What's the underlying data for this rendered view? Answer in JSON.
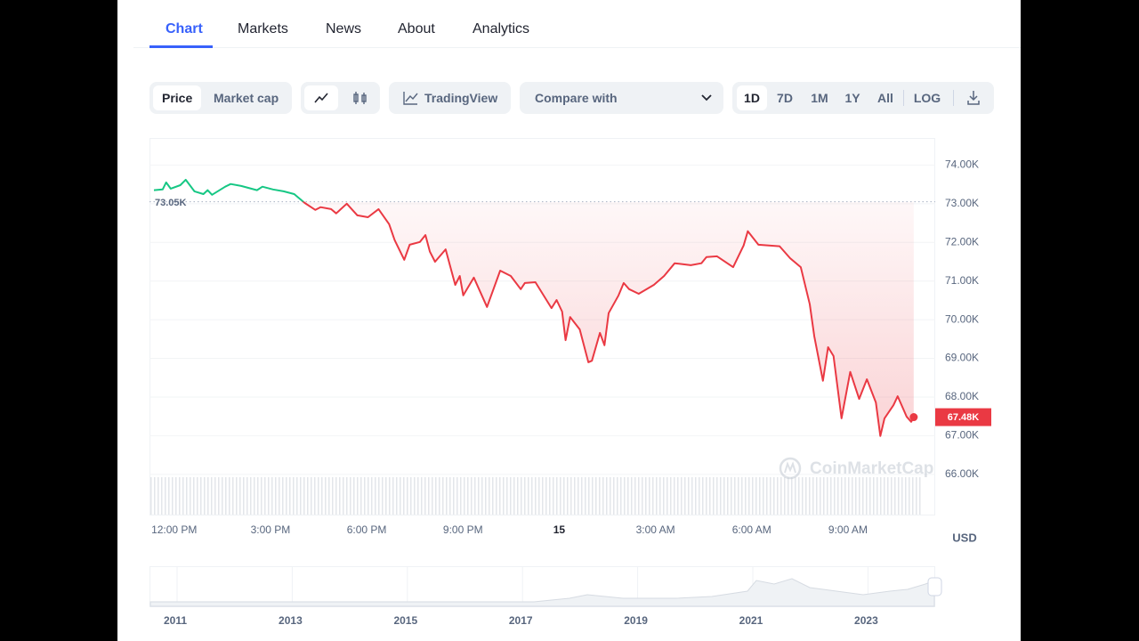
{
  "tabs": [
    "Chart",
    "Markets",
    "News",
    "About",
    "Analytics"
  ],
  "toolbar": {
    "data_type": [
      "Price",
      "Market cap"
    ],
    "tradingview": "TradingView",
    "compare": "Compare with",
    "ranges": [
      "1D",
      "7D",
      "1M",
      "1Y",
      "All"
    ],
    "log": "LOG"
  },
  "chart_data": {
    "type": "line",
    "x": [
      11.37,
      11.64,
      11.75,
      11.89,
      12.19,
      12.36,
      12.63,
      12.91,
      13.04,
      13.18,
      13.59,
      13.76,
      14.09,
      14.58,
      14.75,
      15.08,
      15.41,
      15.74,
      16.07,
      16.4,
      16.56,
      16.89,
      17.05,
      17.38,
      17.71,
      18.04,
      18.37,
      18.7,
      18.87,
      19.17,
      19.34,
      19.66,
      19.83,
      19.97,
      20.13,
      20.46,
      20.76,
      20.9,
      21.01,
      21.34,
      21.75,
      22.16,
      22.49,
      22.8,
      22.93,
      23.26,
      23.76,
      23.92,
      24.09,
      24.2,
      24.34,
      24.64,
      24.91,
      25.02,
      25.27,
      25.41,
      25.54,
      25.85,
      26.01,
      26.18,
      26.48,
      26.95,
      27.27,
      27.6,
      28.1,
      28.43,
      28.59,
      28.92,
      29.42,
      29.75,
      29.88,
      30.21,
      30.54,
      30.87,
      31.2,
      31.53,
      31.81,
      31.95,
      32.22,
      32.38,
      32.55,
      32.8,
      33.07,
      33.35,
      33.59,
      33.87,
      34.01,
      34.14,
      34.42,
      34.55,
      34.83,
      34.97,
      35.05
    ],
    "values": [
      73350,
      73370,
      73550,
      73390,
      73480,
      73620,
      73320,
      73250,
      73350,
      73230,
      73440,
      73510,
      73460,
      73350,
      73440,
      73370,
      73320,
      73250,
      73020,
      72840,
      72910,
      72860,
      72750,
      73000,
      72700,
      72650,
      72860,
      72470,
      72060,
      71550,
      71940,
      72010,
      72190,
      71760,
      71500,
      71820,
      70900,
      71130,
      70630,
      71090,
      70330,
      71270,
      71130,
      70790,
      70950,
      70970,
      70300,
      70510,
      70210,
      69470,
      70070,
      69750,
      68900,
      68940,
      69660,
      69340,
      70170,
      70630,
      70950,
      70790,
      70670,
      70900,
      71130,
      71460,
      71410,
      71460,
      71620,
      71640,
      71360,
      71920,
      72290,
      71940,
      71920,
      71900,
      71590,
      71360,
      70400,
      69570,
      68420,
      69290,
      69060,
      67450,
      68650,
      67950,
      68460,
      67860,
      66990,
      67450,
      67790,
      68020,
      67490,
      67360,
      67480
    ],
    "color_up": "#16c784",
    "color_down": "#ea3943",
    "baseline": {
      "value": 73050,
      "label": "73.05K"
    },
    "last_price": {
      "value": 67480,
      "label": "67.48K"
    },
    "xlim": [
      11.23,
      35.72
    ],
    "ylim": [
      64960,
      74700
    ],
    "xticks": [
      {
        "value": 12,
        "label": "12:00 PM"
      },
      {
        "value": 15,
        "label": "3:00 PM"
      },
      {
        "value": 18,
        "label": "6:00 PM"
      },
      {
        "value": 21,
        "label": "9:00 PM"
      },
      {
        "value": 24,
        "label": "15"
      },
      {
        "value": 27,
        "label": "3:00 AM"
      },
      {
        "value": 30,
        "label": "6:00 AM"
      },
      {
        "value": 33,
        "label": "9:00 AM"
      }
    ],
    "yticks": [
      {
        "value": 74000,
        "label": "74.00K"
      },
      {
        "value": 73000,
        "label": "73.00K"
      },
      {
        "value": 72000,
        "label": "72.00K"
      },
      {
        "value": 71000,
        "label": "71.00K"
      },
      {
        "value": 70000,
        "label": "70.00K"
      },
      {
        "value": 69000,
        "label": "69.00K"
      },
      {
        "value": 68000,
        "label": "68.00K"
      },
      {
        "value": 67000,
        "label": "67.00K"
      },
      {
        "value": 66000,
        "label": "66.00K"
      }
    ],
    "grid": true,
    "currency": "USD",
    "watermark": "CoinMarketCap"
  },
  "navigator": {
    "years": [
      "2011",
      "2013",
      "2015",
      "2017",
      "2019",
      "2021",
      "2023"
    ]
  }
}
